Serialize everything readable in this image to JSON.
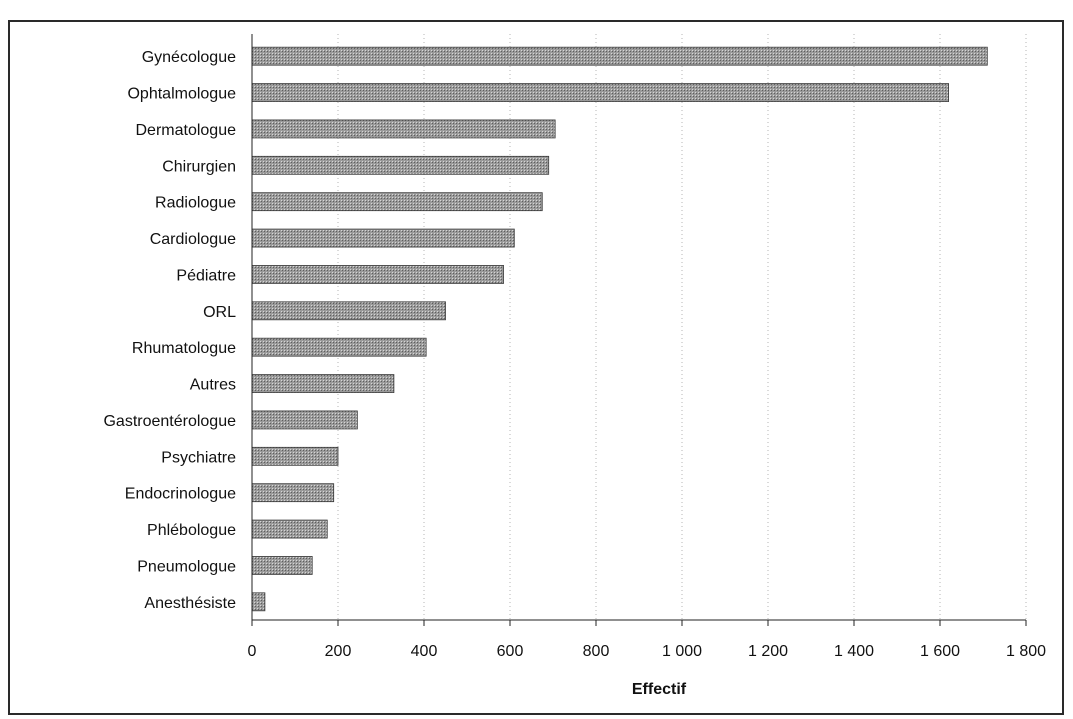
{
  "chart_data": {
    "type": "bar",
    "orientation": "horizontal",
    "categories": [
      "Gynécologue",
      "Ophtalmologue",
      "Dermatologue",
      "Chirurgien",
      "Radiologue",
      "Cardiologue",
      "Pédiatre",
      "ORL",
      "Rhumatologue",
      "Autres",
      "Gastroentérologue",
      "Psychiatre",
      "Endocrinologue",
      "Phlébologue",
      "Pneumologue",
      "Anesthésiste"
    ],
    "values": [
      1710,
      1620,
      705,
      690,
      675,
      610,
      585,
      450,
      405,
      330,
      245,
      200,
      190,
      175,
      140,
      30
    ],
    "xlabel": "Effectif",
    "ylabel": "",
    "xlim": [
      0,
      1800
    ],
    "xticks": [
      0,
      200,
      400,
      600,
      800,
      1000,
      1200,
      1400,
      1600,
      1800
    ],
    "xtick_labels": [
      "0",
      "200",
      "400",
      "600",
      "800",
      "1 000",
      "1 200",
      "1 400",
      "1 600",
      "1 800"
    ],
    "grid": "vertical dotted",
    "legend": "none",
    "bar_color": "#9a9a9a"
  }
}
